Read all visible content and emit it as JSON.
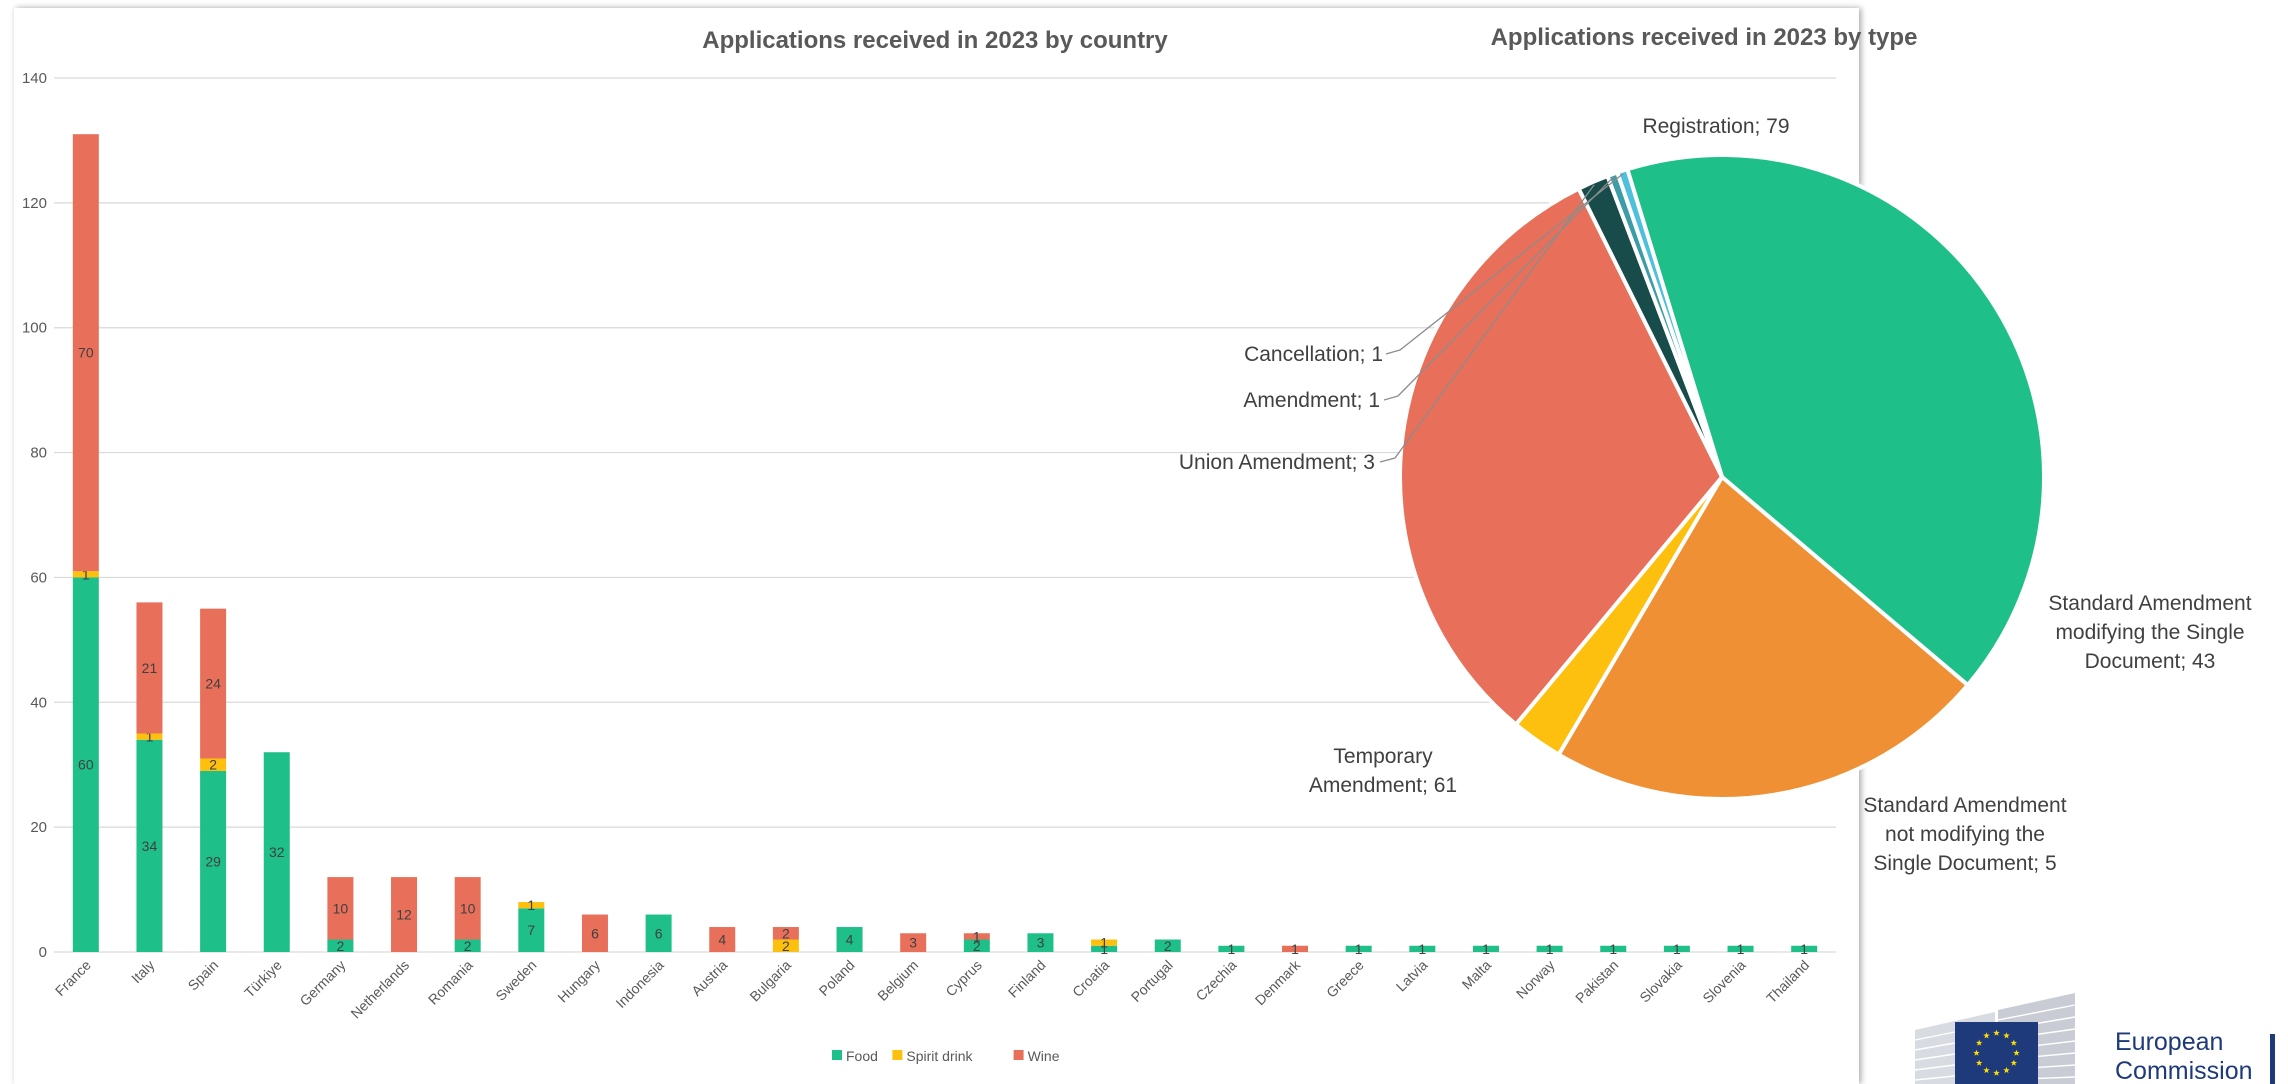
{
  "colors": {
    "food": "#1fbf8a",
    "spirit": "#fdc00f",
    "wine": "#e8705a",
    "grid": "#d9d9d9",
    "text": "#595959",
    "pie_registration": "#1fbf8a",
    "pie_standard_modifying": "#ee9033",
    "pie_standard_not_modifying": "#fdc00f",
    "pie_temporary": "#e8705a",
    "pie_union": "#174c4a",
    "pie_amendment": "#3d9da6",
    "pie_cancellation": "#4ec0dc",
    "eu_blue": "#1e3a7b",
    "eu_star": "#ffdd00"
  },
  "logo": {
    "line1": "European",
    "line2": "Commission"
  },
  "chart_data": [
    {
      "type": "bar",
      "stacked": true,
      "title": "Applications received in 2023 by country",
      "xlabel": "",
      "ylabel": "",
      "ylim": [
        0,
        140
      ],
      "yticks": [
        0,
        20,
        40,
        60,
        80,
        100,
        120,
        140
      ],
      "grid": true,
      "legend_position": "bottom",
      "categories": [
        "France",
        "Italy",
        "Spain",
        "Türkiye",
        "Germany",
        "Netherlands",
        "Romania",
        "Sweden",
        "Hungary",
        "Indonesia",
        "Austria",
        "Bulgaria",
        "Poland",
        "Belgium",
        "Cyprus",
        "Finland",
        "Croatia",
        "Portugal",
        "Czechia",
        "Denmark",
        "Greece",
        "Latvia",
        "Malta",
        "Norway",
        "Pakistan",
        "Slovakia",
        "Slovenia",
        "Thailand"
      ],
      "series": [
        {
          "name": "Food",
          "values": [
            60,
            34,
            29,
            32,
            2,
            0,
            2,
            7,
            0,
            6,
            0,
            0,
            4,
            0,
            2,
            3,
            1,
            2,
            1,
            0,
            1,
            1,
            1,
            1,
            1,
            1,
            1,
            1
          ]
        },
        {
          "name": "Spirit drink",
          "values": [
            1,
            1,
            2,
            0,
            0,
            0,
            0,
            1,
            0,
            0,
            0,
            2,
            0,
            0,
            0,
            0,
            1,
            0,
            0,
            0,
            0,
            0,
            0,
            0,
            0,
            0,
            0,
            0
          ]
        },
        {
          "name": "Wine",
          "values": [
            70,
            21,
            24,
            0,
            10,
            12,
            10,
            0,
            6,
            0,
            4,
            2,
            0,
            3,
            1,
            0,
            0,
            0,
            0,
            1,
            0,
            0,
            0,
            0,
            0,
            0,
            0,
            0
          ]
        }
      ],
      "labels": [
        [
          "60",
          "1",
          "70"
        ],
        [
          "34",
          "1",
          "21"
        ],
        [
          "29",
          "2",
          "24"
        ],
        [
          "32",
          "",
          ""
        ],
        [
          "2",
          "",
          "10"
        ],
        [
          "",
          "",
          "12"
        ],
        [
          "2",
          "",
          "10"
        ],
        [
          "7",
          "1",
          ""
        ],
        [
          "",
          "",
          "6"
        ],
        [
          "6",
          "",
          ""
        ],
        [
          "",
          "",
          "4"
        ],
        [
          "",
          "2",
          "2"
        ],
        [
          "4",
          "",
          ""
        ],
        [
          "",
          "",
          "3"
        ],
        [
          "2",
          "",
          "1"
        ],
        [
          "3",
          "",
          ""
        ],
        [
          "1",
          "1",
          ""
        ],
        [
          "2",
          "",
          ""
        ],
        [
          "1",
          "",
          ""
        ],
        [
          "",
          "",
          "1"
        ],
        [
          "1",
          "",
          ""
        ],
        [
          "1",
          "",
          ""
        ],
        [
          "1",
          "",
          ""
        ],
        [
          "1",
          "",
          ""
        ],
        [
          "1",
          "",
          ""
        ],
        [
          "1",
          "",
          ""
        ],
        [
          "1",
          "",
          ""
        ],
        [
          "1",
          "",
          ""
        ]
      ]
    },
    {
      "type": "pie",
      "title": "Applications received in 2023 by type",
      "slices": [
        {
          "name": "Registration",
          "value": 79,
          "label_lines": [
            "Registration; 79"
          ]
        },
        {
          "name": "Standard Amendment modifying the Single Document",
          "value": 43,
          "label_lines": [
            "Standard Amendment",
            "modifying the Single",
            "Document; 43"
          ]
        },
        {
          "name": "Standard Amendment not modifying the Single Document",
          "value": 5,
          "label_lines": [
            "Standard Amendment",
            "not modifying the",
            "Single Document; 5"
          ]
        },
        {
          "name": "Temporary Amendment",
          "value": 61,
          "label_lines": [
            "Temporary",
            "Amendment; 61"
          ]
        },
        {
          "name": "Union Amendment",
          "value": 3,
          "label_lines": [
            "Union Amendment; 3"
          ]
        },
        {
          "name": "Amendment",
          "value": 1,
          "label_lines": [
            "Amendment; 1"
          ]
        },
        {
          "name": "Cancellation",
          "value": 1,
          "label_lines": [
            "Cancellation; 1"
          ]
        }
      ]
    }
  ]
}
